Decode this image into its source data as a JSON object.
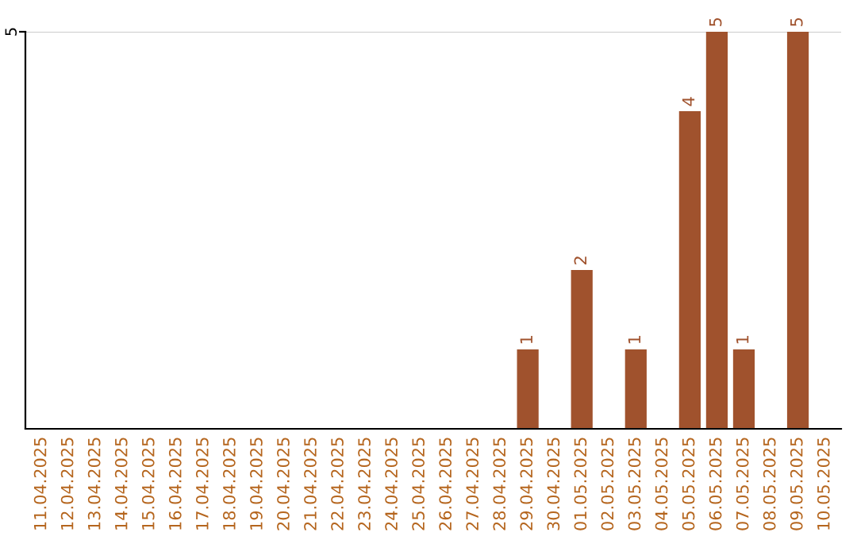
{
  "chart_data": {
    "type": "bar",
    "categories": [
      "11.04.2025",
      "12.04.2025",
      "13.04.2025",
      "14.04.2025",
      "15.04.2025",
      "16.04.2025",
      "17.04.2025",
      "18.04.2025",
      "19.04.2025",
      "20.04.2025",
      "21.04.2025",
      "22.04.2025",
      "23.04.2025",
      "24.04.2025",
      "25.04.2025",
      "26.04.2025",
      "27.04.2025",
      "28.04.2025",
      "29.04.2025",
      "30.04.2025",
      "01.05.2025",
      "02.05.2025",
      "03.05.2025",
      "04.05.2025",
      "05.05.2025",
      "06.05.2025",
      "07.05.2025",
      "08.05.2025",
      "09.05.2025",
      "10.05.2025"
    ],
    "values": [
      null,
      null,
      null,
      null,
      null,
      null,
      null,
      null,
      null,
      null,
      null,
      null,
      null,
      null,
      null,
      null,
      null,
      null,
      1,
      null,
      2,
      null,
      1,
      null,
      4,
      5,
      1,
      null,
      5,
      null
    ],
    "data_labels": true,
    "color": "#a0522d",
    "ref_lines": [
      {
        "axis": "y",
        "value": 5,
        "color": "#cccccc"
      }
    ],
    "annotations": [
      "5"
    ]
  }
}
